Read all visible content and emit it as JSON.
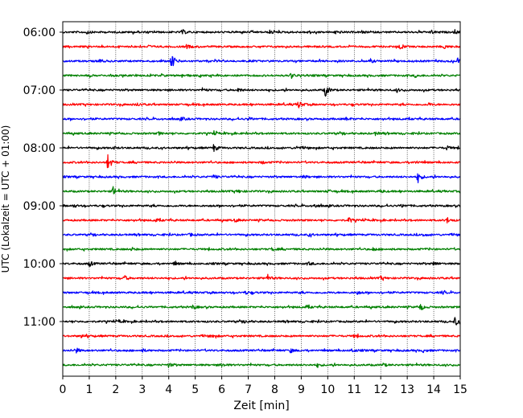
{
  "chart_data": {
    "type": "line",
    "title": "",
    "xlabel": "Zeit  [min]",
    "ylabel": "UTC (Lokalzeit = UTC + 01:00)",
    "xlim": [
      0,
      15
    ],
    "xticks": [
      0,
      1,
      2,
      3,
      4,
      5,
      6,
      7,
      8,
      9,
      10,
      11,
      12,
      13,
      14,
      15
    ],
    "x_grid": true,
    "y_grid": false,
    "legend": "none",
    "start_time": "06:00",
    "minutes_per_trace": 15,
    "colors": [
      "#000000",
      "#ff0000",
      "#0000ff",
      "#008000"
    ],
    "ytick_labels": [
      "06:00",
      "07:00",
      "08:00",
      "09:00",
      "10:00",
      "11:00"
    ],
    "series": [
      {
        "time": "06:00",
        "color": "#000000",
        "events": [
          [
            4.5,
            0.25
          ],
          [
            0.9,
            0.15
          ],
          [
            7.8,
            0.15
          ],
          [
            9.2,
            0.15
          ],
          [
            10.3,
            0.2
          ],
          [
            13.9,
            0.15
          ],
          [
            14.8,
            0.2
          ]
        ]
      },
      {
        "time": "06:15",
        "color": "#ff0000",
        "events": [
          [
            4.7,
            0.2
          ],
          [
            3.2,
            0.15
          ],
          [
            12.7,
            0.2
          ],
          [
            14.4,
            0.2
          ]
        ]
      },
      {
        "time": "06:30",
        "color": "#0000ff",
        "events": [
          [
            4.1,
            0.9
          ],
          [
            1.4,
            0.2
          ],
          [
            11.6,
            0.2
          ],
          [
            14.9,
            0.3
          ]
        ]
      },
      {
        "time": "06:45",
        "color": "#008000",
        "events": [
          [
            8.6,
            0.3
          ],
          [
            4.5,
            0.15
          ],
          [
            13.3,
            0.15
          ]
        ]
      },
      {
        "time": "07:00",
        "color": "#000000",
        "events": [
          [
            9.9,
            0.7
          ],
          [
            6.6,
            0.2
          ],
          [
            5.3,
            0.15
          ],
          [
            12.6,
            0.15
          ]
        ]
      },
      {
        "time": "07:15",
        "color": "#ff0000",
        "events": [
          [
            8.9,
            0.4
          ],
          [
            2.8,
            0.15
          ],
          [
            13.8,
            0.15
          ]
        ]
      },
      {
        "time": "07:30",
        "color": "#0000ff",
        "events": [
          [
            4.5,
            0.15
          ],
          [
            7.0,
            0.15
          ],
          [
            10.7,
            0.15
          ]
        ]
      },
      {
        "time": "07:45",
        "color": "#008000",
        "events": [
          [
            5.7,
            0.15
          ],
          [
            3.6,
            0.15
          ],
          [
            11.8,
            0.15
          ]
        ]
      },
      {
        "time": "08:00",
        "color": "#000000",
        "events": [
          [
            5.7,
            0.4
          ],
          [
            1.9,
            0.15
          ],
          [
            8.8,
            0.2
          ],
          [
            14.5,
            0.2
          ]
        ]
      },
      {
        "time": "08:15",
        "color": "#ff0000",
        "events": [
          [
            1.7,
            0.85
          ],
          [
            7.5,
            0.15
          ],
          [
            13.3,
            0.15
          ]
        ]
      },
      {
        "time": "08:30",
        "color": "#0000ff",
        "events": [
          [
            13.4,
            0.55
          ],
          [
            5.7,
            0.2
          ],
          [
            9.1,
            0.15
          ]
        ]
      },
      {
        "time": "08:45",
        "color": "#008000",
        "events": [
          [
            1.9,
            0.45
          ],
          [
            6.6,
            0.15
          ],
          [
            10.0,
            0.15
          ],
          [
            12.0,
            0.15
          ]
        ]
      },
      {
        "time": "09:00",
        "color": "#000000",
        "events": [
          [
            9.5,
            0.2
          ],
          [
            0.4,
            0.15
          ],
          [
            12.8,
            0.15
          ]
        ]
      },
      {
        "time": "09:15",
        "color": "#ff0000",
        "events": [
          [
            10.8,
            0.3
          ],
          [
            14.5,
            0.3
          ],
          [
            3.5,
            0.15
          ],
          [
            6.5,
            0.15
          ]
        ]
      },
      {
        "time": "09:30",
        "color": "#0000ff",
        "events": [
          [
            4.8,
            0.15
          ],
          [
            9.3,
            0.15
          ],
          [
            13.6,
            0.15
          ]
        ]
      },
      {
        "time": "09:45",
        "color": "#008000",
        "events": [
          [
            7.9,
            0.15
          ],
          [
            2.6,
            0.15
          ],
          [
            11.7,
            0.15
          ]
        ]
      },
      {
        "time": "10:00",
        "color": "#000000",
        "events": [
          [
            1.0,
            0.3
          ],
          [
            4.2,
            0.15
          ],
          [
            9.3,
            0.15
          ],
          [
            14.0,
            0.2
          ]
        ]
      },
      {
        "time": "10:15",
        "color": "#ff0000",
        "events": [
          [
            2.3,
            0.3
          ],
          [
            7.7,
            0.3
          ],
          [
            12.0,
            0.15
          ]
        ]
      },
      {
        "time": "10:30",
        "color": "#0000ff",
        "events": [
          [
            6.9,
            0.15
          ],
          [
            11.1,
            0.15
          ],
          [
            14.3,
            0.15
          ]
        ]
      },
      {
        "time": "10:45",
        "color": "#008000",
        "events": [
          [
            13.5,
            0.35
          ],
          [
            4.9,
            0.2
          ],
          [
            9.2,
            0.15
          ]
        ]
      },
      {
        "time": "11:00",
        "color": "#000000",
        "events": [
          [
            14.8,
            0.45
          ],
          [
            2.1,
            0.15
          ],
          [
            6.9,
            0.15
          ]
        ]
      },
      {
        "time": "11:15",
        "color": "#ff0000",
        "events": [
          [
            5.6,
            0.2
          ],
          [
            11.0,
            0.15
          ],
          [
            0.7,
            0.15
          ]
        ]
      },
      {
        "time": "11:30",
        "color": "#0000ff",
        "events": [
          [
            0.5,
            0.25
          ],
          [
            3.0,
            0.15
          ],
          [
            8.6,
            0.2
          ],
          [
            10.9,
            0.2
          ],
          [
            13.6,
            0.15
          ]
        ]
      },
      {
        "time": "11:45",
        "color": "#008000",
        "events": [
          [
            4.0,
            0.2
          ],
          [
            6.0,
            0.2
          ],
          [
            9.6,
            0.15
          ],
          [
            12.1,
            0.15
          ]
        ]
      }
    ]
  }
}
